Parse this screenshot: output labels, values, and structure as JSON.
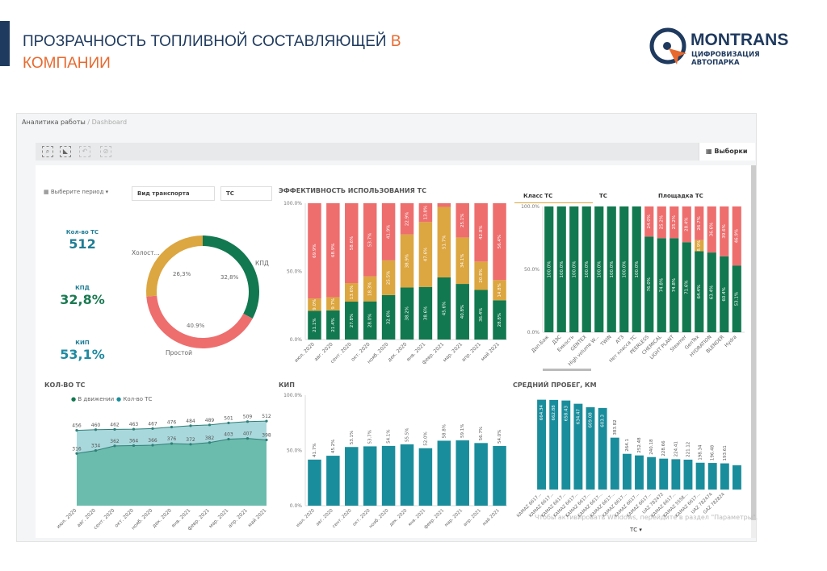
{
  "slide": {
    "title_part1": "ПРОЗРАЧНОСТЬ ТОПЛИВНОЙ СОСТАВЛЯЮЩЕЙ",
    "title_highlight": "В",
    "title_part2": "КОМПАНИИ"
  },
  "logo": {
    "name": "MONTRANS",
    "tagline": "ЦИФРОВИЗАЦИЯ АВТОПАРКА"
  },
  "breadcrumb": {
    "parent": "Аналитика работы",
    "separator": "/",
    "current": "Dashboard"
  },
  "toolbar": {
    "icons": [
      "zoom-select-icon",
      "lasso-select-icon",
      "back-icon",
      "clear-icon"
    ],
    "selections_label": "Выборки"
  },
  "filters": {
    "period_label": "Выберите период",
    "transport_type": "Вид транспорта",
    "vehicle": "ТС"
  },
  "kpis": [
    {
      "label": "Кол-во ТС",
      "value": "512",
      "color": "#1f7d95"
    },
    {
      "label": "КПД",
      "value": "32,8%",
      "color": "#1a7a52"
    },
    {
      "label": "КИП",
      "value": "53,1%",
      "color": "#1f8aa0"
    }
  ],
  "donut": {
    "slices": [
      {
        "label": "КПД",
        "value": 32.8,
        "text": "32,8%",
        "color": "#12784f"
      },
      {
        "label": "Простой",
        "value": 40.9,
        "text": "40.9%",
        "color": "#ee6e6e"
      },
      {
        "label": "Холост...",
        "value": 26.3,
        "text": "26,3%",
        "color": "#dca640"
      }
    ]
  },
  "colors": {
    "green": "#12784f",
    "yellow": "#dca640",
    "red": "#ee6e6e",
    "teal": "#1a8d9c",
    "area_light": "#a9d8dc",
    "area_dark": "#6bbcad"
  },
  "chart_data": [
    {
      "id": "efficiency",
      "type": "bar",
      "stacked": true,
      "title": "ЭФФЕКТИВНОСТЬ ИСПОЛЬЗОВАНИЯ ТС",
      "ylim": [
        0,
        100
      ],
      "yticks": [
        "0.0%",
        "50.0%",
        "100.0%"
      ],
      "categories": [
        "июл. 2020",
        "авг. 2020",
        "сент. 2020",
        "окт. 2020",
        "нояб. 2020",
        "дек. 2020",
        "янв. 2021",
        "февр. 2021",
        "мар. 2021",
        "апр. 2021",
        "май 2021"
      ],
      "series": [
        {
          "values": [
            21.1,
            21.4,
            27.8,
            28.0,
            32.6,
            38.2,
            38.6,
            45.6,
            40.8,
            36.4,
            28.8
          ],
          "color": "#12784f"
        },
        {
          "values": [
            9.0,
            9.7,
            13.6,
            18.3,
            25.5,
            38.9,
            47.6,
            51.7,
            34.1,
            20.8,
            14.8
          ],
          "color": "#dca640"
        },
        {
          "values": [
            69.9,
            68.9,
            58.6,
            53.7,
            41.9,
            22.9,
            13.8,
            2.7,
            25.1,
            42.8,
            56.4
          ],
          "color": "#ee6e6e"
        }
      ]
    },
    {
      "id": "by-class",
      "type": "bar",
      "stacked": true,
      "tabs": [
        "Класс ТС",
        "ТС",
        "Площадка ТС"
      ],
      "ylim": [
        0,
        100
      ],
      "yticks": [
        "0.0%",
        "50.0%",
        "100.0%"
      ],
      "categories": [
        "Доп.Баж",
        "ДЭС",
        "Емкость",
        "GENTEX",
        "High volume W...",
        "TWIN",
        "АТЗ",
        "Нет класса ТС",
        "PEERLESS",
        "CHEMICAL",
        "LIGHT PLANT",
        "Steamer",
        "GenTex",
        "HYDRATION",
        "BLENDER",
        "Hydra"
      ],
      "series": [
        {
          "values": [
            100,
            100,
            100,
            100,
            100,
            100,
            100,
            100,
            76.0,
            74.8,
            74.8,
            71.6,
            64.4,
            63.4,
            60.4,
            53.1
          ],
          "color": "#12784f"
        },
        {
          "values": [
            0,
            0,
            0,
            0,
            0,
            0,
            0,
            0,
            0,
            0,
            0,
            0,
            8.9,
            0,
            0,
            0
          ],
          "color": "#dca640"
        },
        {
          "values": [
            0,
            0,
            0,
            0,
            0,
            0,
            0,
            0,
            24.0,
            25.2,
            25.2,
            28.4,
            26.7,
            36.6,
            39.6,
            46.9
          ],
          "color": "#ee6e6e"
        }
      ]
    },
    {
      "id": "vehicle-count",
      "type": "area",
      "title": "КОЛ-ВО ТС",
      "ylim": [
        0,
        620
      ],
      "categories": [
        "июл. 2020",
        "авг. 2020",
        "сент. 2020",
        "окт. 2020",
        "нояб. 2020",
        "дек. 2020",
        "янв. 2021",
        "февр. 2021",
        "мар. 2021",
        "апр. 2021",
        "май 2021"
      ],
      "series": [
        {
          "name": "В движении",
          "values": [
            316,
            334,
            362,
            364,
            366,
            376,
            372,
            382,
            403,
            407,
            398
          ]
        },
        {
          "name": "Кол-во ТС",
          "values": [
            456,
            460,
            462,
            463,
            467,
            476,
            484,
            489,
            501,
            509,
            512
          ]
        }
      ],
      "legend": "top-left"
    },
    {
      "id": "kip",
      "type": "bar",
      "title": "КИП",
      "ylim": [
        0,
        100
      ],
      "yticks": [
        "0.0%",
        "50.0%",
        "100.0%"
      ],
      "categories": [
        "июл. 2020",
        "авг. 2020",
        "сент. 2020",
        "окт. 2020",
        "нояб. 2020",
        "дек. 2020",
        "янв. 2021",
        "февр. 2021",
        "мар. 2021",
        "апр. 2021",
        "май 2021"
      ],
      "values": [
        41.7,
        45.2,
        53.1,
        53.7,
        54.1,
        55.5,
        52.0,
        58.8,
        59.1,
        56.7,
        54.0
      ]
    },
    {
      "id": "mileage",
      "type": "bar",
      "title": "СРЕДНИЙ ПРОБЕГ, КМ",
      "ylim": [
        0,
        700
      ],
      "axis_label": "ТС",
      "categories": [
        "KAMAZ 6617...",
        "KAMAZ 6617...",
        "KAMAZ 6617...",
        "KAMAZ 6617...",
        "KAMAZ 6617...",
        "KAMAZ 6617...",
        "KAMAZ 6617...",
        "KAMAZ 6617...",
        "KAMAZ 6617...",
        "KAMAZ 6617...",
        "UAZ 782472",
        "KAMAZ 6617...",
        "KAMAZ 5558...",
        "KAMAZ 6617...",
        "UAZ 782474",
        "GAZ 782824",
        ""
      ],
      "values": [
        664.34,
        662.88,
        658.43,
        634.47,
        609.08,
        603.3,
        383.82,
        264.1,
        252.48,
        240.18,
        228.66,
        224.41,
        221.12,
        198.34,
        196.48,
        193.61,
        180
      ]
    }
  ],
  "watermark": "Чтобы активировать Windows, перейдите в раздел \"Параметры\"."
}
